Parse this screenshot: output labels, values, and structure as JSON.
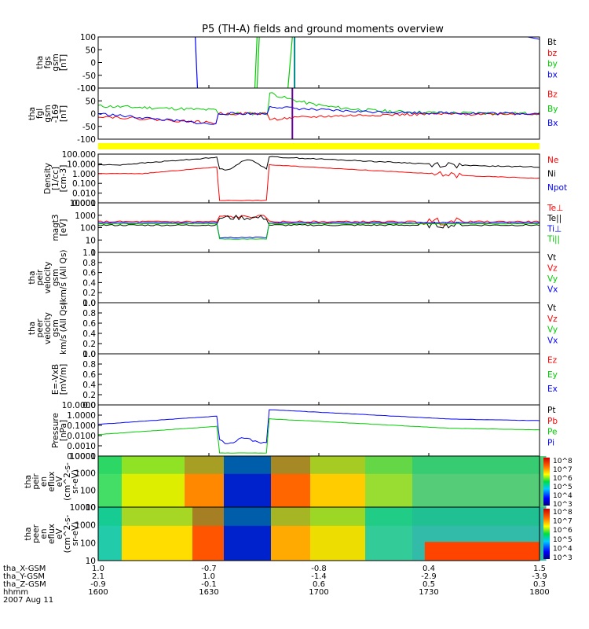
{
  "chart_data": {
    "type": "line",
    "title": "P5 (TH-A) fields and ground moments overview",
    "date": "2007 Aug 11",
    "time_ticks": [
      "1600",
      "1630",
      "1700",
      "1730",
      "1800"
    ],
    "ephemeris": {
      "labels": [
        "tha_X-GSM",
        "tha_Y-GSM",
        "tha_Z-GSM",
        "hhmm"
      ],
      "rows": [
        [
          "1.0",
          "-0.7",
          "-0.8",
          "0.4",
          "1.5"
        ],
        [
          "2.1",
          "1.0",
          "-1.4",
          "-2.9",
          "-3.9"
        ],
        [
          "-0.9",
          "-0.1",
          "0.6",
          "0.5",
          "0.3"
        ],
        [
          "1600",
          "1630",
          "1700",
          "1730",
          "1800"
        ]
      ]
    },
    "panels": [
      {
        "id": "fgs",
        "ylabel": [
          "tha",
          "fgs",
          "gsm",
          "[nT]"
        ],
        "ylim": [
          -100,
          100
        ],
        "yticks": [
          "100",
          "50",
          "0",
          "-50",
          "-100"
        ],
        "legend": [
          {
            "label": "Bt",
            "color": "#000000"
          },
          {
            "label": "bz",
            "color": "#ff0000"
          },
          {
            "label": "by",
            "color": "#00cc00"
          },
          {
            "label": "bx",
            "color": "#0000ff"
          }
        ]
      },
      {
        "id": "fgl",
        "ylabel": [
          "tha",
          "fgl",
          "gsm",
          "-169",
          "[nT]"
        ],
        "ylim": [
          -100,
          100
        ],
        "yticks": [
          "100",
          "50",
          "0",
          "-50",
          "-100"
        ],
        "legend": [
          {
            "label": "Bz",
            "color": "#ff0000"
          },
          {
            "label": "By",
            "color": "#00cc00"
          },
          {
            "label": "Bx",
            "color": "#0000ff"
          }
        ]
      },
      {
        "id": "density",
        "ylabel": [
          "Density",
          "[1/cc]",
          "[cm-3]"
        ],
        "yscale": "log",
        "yticks": [
          "100.000",
          "10.000",
          "1.000",
          "0.100",
          "0.010",
          "0.001"
        ],
        "legend": [
          {
            "label": "Ne",
            "color": "#ff0000"
          },
          {
            "label": "Ni",
            "color": "#000000"
          },
          {
            "label": "Npot",
            "color": "#0000ff"
          }
        ]
      },
      {
        "id": "temperature",
        "ylabel": [
          "magt3",
          "[eV]"
        ],
        "yscale": "log",
        "yticks": [
          "10000",
          "1000",
          "100",
          "10",
          "1"
        ],
        "legend": [
          {
            "label": "Te⊥",
            "color": "#ff0000"
          },
          {
            "label": "Te||",
            "color": "#000000"
          },
          {
            "label": "Ti⊥",
            "color": "#0000ff"
          },
          {
            "label": "Ti||",
            "color": "#00cc00"
          }
        ]
      },
      {
        "id": "peir_velocity",
        "ylabel": [
          "tha",
          "peir",
          "velocity",
          "gsm",
          "(km/s (All Qs)"
        ],
        "ylim": [
          0.0,
          1.0
        ],
        "yticks": [
          "1.0",
          "0.8",
          "0.6",
          "0.4",
          "0.2",
          "0.0"
        ],
        "legend": [
          {
            "label": "Vt",
            "color": "#000000"
          },
          {
            "label": "Vz",
            "color": "#ff0000"
          },
          {
            "label": "Vy",
            "color": "#00cc00"
          },
          {
            "label": "Vx",
            "color": "#0000ff"
          }
        ]
      },
      {
        "id": "peer_velocity",
        "ylabel": [
          "tha",
          "peer",
          "velocity",
          "gsm",
          "km/s (All Qs)"
        ],
        "ylim": [
          0.0,
          1.0
        ],
        "yticks": [
          "1.0",
          "0.8",
          "0.6",
          "0.4",
          "0.2",
          "0.0"
        ],
        "legend": [
          {
            "label": "Vt",
            "color": "#000000"
          },
          {
            "label": "Vz",
            "color": "#ff0000"
          },
          {
            "label": "Vy",
            "color": "#00cc00"
          },
          {
            "label": "Vx",
            "color": "#0000ff"
          }
        ]
      },
      {
        "id": "efield",
        "ylabel": [
          "E=-VxB",
          "[mV/m]"
        ],
        "ylim": [
          0.0,
          1.0
        ],
        "yticks": [
          "1.0",
          "0.8",
          "0.6",
          "0.4",
          "0.2",
          "0.0"
        ],
        "legend": [
          {
            "label": "Ez",
            "color": "#ff0000"
          },
          {
            "label": "Ey",
            "color": "#00cc00"
          },
          {
            "label": "Ex",
            "color": "#0000ff"
          }
        ]
      },
      {
        "id": "pressure",
        "ylabel": [
          "Pressure",
          "[nPa]"
        ],
        "yscale": "log",
        "yticks": [
          "10.0000",
          "1.0000",
          "0.1000",
          "0.0100",
          "0.0010",
          "0.0001"
        ],
        "legend": [
          {
            "label": "Pt",
            "color": "#000000"
          },
          {
            "label": "Pb",
            "color": "#ff0000"
          },
          {
            "label": "Pe",
            "color": "#00cc00"
          },
          {
            "label": "Pi",
            "color": "#0000ff"
          }
        ]
      },
      {
        "id": "peir_spectrogram",
        "type": "heatmap",
        "ylabel": [
          "tha",
          "peir",
          "en",
          "eflux",
          "eV",
          "(cm^2-s-",
          "sr-eV)"
        ],
        "yticks": [
          "10000",
          "1000",
          "100",
          "10"
        ],
        "colorbar": [
          "10^8",
          "10^7",
          "10^6",
          "10^5",
          "10^4",
          "10^3"
        ]
      },
      {
        "id": "peer_spectrogram",
        "type": "heatmap",
        "ylabel": [
          "tha",
          "peer",
          "en",
          "eflux",
          "eV",
          "(cm^2-s-",
          "sr-eV)"
        ],
        "yticks": [
          "10000",
          "1000",
          "100",
          "10"
        ],
        "colorbar": [
          "10^8",
          "10^7",
          "10^6",
          "10^5",
          "10^4",
          "10^3"
        ]
      }
    ]
  }
}
